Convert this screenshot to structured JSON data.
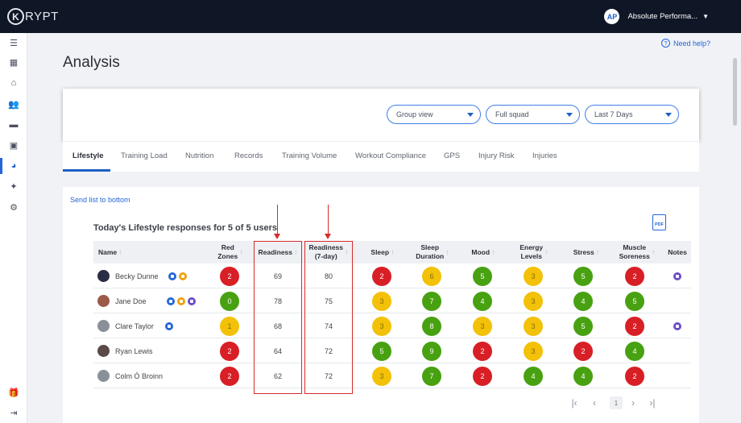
{
  "brand": {
    "logo_letter": "K",
    "logo_word": "RYPT"
  },
  "account": {
    "name": "Absolute Performa...",
    "initial": "AP"
  },
  "help": {
    "label": "Need help?"
  },
  "page": {
    "title": "Analysis"
  },
  "filters": {
    "view": "Group view",
    "squad": "Full squad",
    "range": "Last 7 Days"
  },
  "tabs": [
    "Lifestyle",
    "Training Load",
    "Nutrition",
    "Records",
    "Training Volume",
    "Workout Compliance",
    "GPS",
    "Injury Risk",
    "Injuries"
  ],
  "main": {
    "send_link": "Send list to bottom",
    "section_title": "Today's Lifestyle responses for 5 of 5 users",
    "pdf_label": "PDF"
  },
  "table": {
    "headers": {
      "name": "Name",
      "red_zones_1": "Red",
      "red_zones_2": "Zones",
      "readiness": "Readiness",
      "readiness7_1": "Readiness",
      "readiness7_2": "(7-day)",
      "sleep": "Sleep",
      "sleep_dur_1": "Sleep",
      "sleep_dur_2": "Duration",
      "mood": "Mood",
      "energy_1": "Energy",
      "energy_2": "Levels",
      "stress": "Stress",
      "muscle_1": "Muscle",
      "muscle_2": "Soreness",
      "notes": "Notes"
    },
    "rows": [
      {
        "name": "Becky Dunne",
        "red_zones": "2",
        "readiness": "69",
        "readiness7": "80",
        "sleep": "2",
        "sleep_duration": "6",
        "mood": "5",
        "energy": "3",
        "stress": "5",
        "soreness": "2"
      },
      {
        "name": "Jane Doe",
        "red_zones": "0",
        "readiness": "78",
        "readiness7": "75",
        "sleep": "3",
        "sleep_duration": "7",
        "mood": "4",
        "energy": "3",
        "stress": "4",
        "soreness": "5"
      },
      {
        "name": "Clare Taylor",
        "red_zones": "1",
        "readiness": "68",
        "readiness7": "74",
        "sleep": "3",
        "sleep_duration": "8",
        "mood": "3",
        "energy": "3",
        "stress": "5",
        "soreness": "2"
      },
      {
        "name": "Ryan Lewis",
        "red_zones": "2",
        "readiness": "64",
        "readiness7": "72",
        "sleep": "5",
        "sleep_duration": "9",
        "mood": "2",
        "energy": "3",
        "stress": "2",
        "soreness": "4"
      },
      {
        "name": "Colm Ó Broinn",
        "red_zones": "2",
        "readiness": "62",
        "readiness7": "72",
        "sleep": "3",
        "sleep_duration": "7",
        "mood": "2",
        "energy": "4",
        "stress": "4",
        "soreness": "2"
      }
    ]
  },
  "pagination": {
    "current_page": "1"
  },
  "colors": {
    "red": "#d81f26",
    "yellow": "#f2c108",
    "green": "#48a111",
    "accent": "#1c5fc8"
  }
}
